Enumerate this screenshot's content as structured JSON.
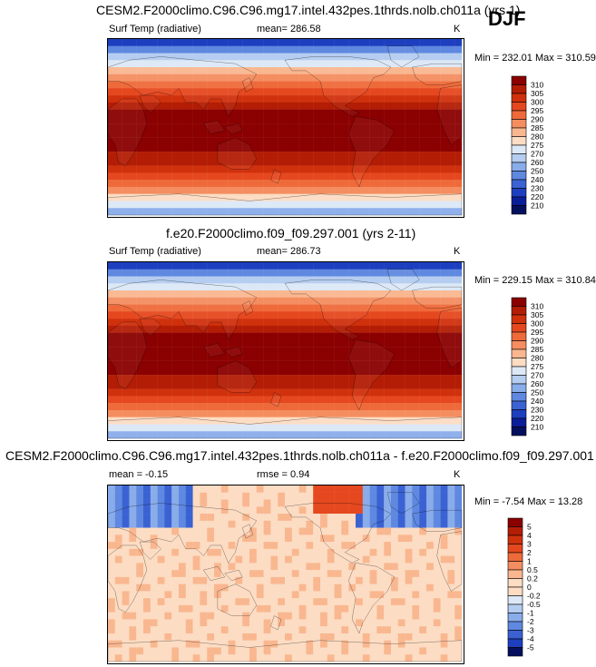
{
  "season": "DJF",
  "panels": [
    {
      "title": "CESM2.F2000climo.C96.C96.mg17.intel.432pes.1thrds.nolb.ch011a (yrs 1)",
      "variable": "Surf Temp (radiative)",
      "stat_label": "mean= 286.58",
      "units": "K",
      "minmax": "Min = 232.01 Max = 310.59",
      "kind": "abs"
    },
    {
      "title": "f.e20.F2000climo.f09_f09.297.001 (yrs 2-11)",
      "variable": "Surf Temp (radiative)",
      "stat_label": "mean= 286.73",
      "units": "K",
      "minmax": "Min = 229.15 Max = 310.84",
      "kind": "abs"
    },
    {
      "title": "CESM2.F2000climo.C96.C96.mg17.intel.432pes.1thrds.nolb.ch011a - f.e20.F2000climo.f09_f09.297.001",
      "variable": "mean = -0.15",
      "stat_label": "rmse = 0.94",
      "units": "K",
      "minmax": "Min = -7.54 Max = 13.28",
      "kind": "diff"
    }
  ],
  "chart_data": [
    {
      "type": "heatmap",
      "title": "CESM2.F2000climo.C96.C96.mg17.intel.432pes.1thrds.nolb.ch011a (yrs 1)",
      "variable": "Surf Temp (radiative)",
      "units": "K",
      "mean": 286.58,
      "min": 232.01,
      "max": 310.59,
      "colorbar_levels": [
        310,
        305,
        300,
        295,
        290,
        285,
        280,
        275,
        270,
        260,
        250,
        240,
        230,
        220,
        210
      ],
      "colors": [
        "#8b0000",
        "#b31d05",
        "#d0310d",
        "#e5481f",
        "#ef6a3a",
        "#f48e60",
        "#f9b790",
        "#fcdcc3",
        "#dde8f7",
        "#b4cdf0",
        "#89acea",
        "#5f88e0",
        "#3b62d3",
        "#1d3fbf",
        "#0b1e99",
        "#04105e"
      ]
    },
    {
      "type": "heatmap",
      "title": "f.e20.F2000climo.f09_f09.297.001 (yrs 2-11)",
      "variable": "Surf Temp (radiative)",
      "units": "K",
      "mean": 286.73,
      "min": 229.15,
      "max": 310.84,
      "colorbar_levels": [
        310,
        305,
        300,
        295,
        290,
        285,
        280,
        275,
        270,
        260,
        250,
        240,
        230,
        220,
        210
      ],
      "colors": [
        "#8b0000",
        "#b31d05",
        "#d0310d",
        "#e5481f",
        "#ef6a3a",
        "#f48e60",
        "#f9b790",
        "#fcdcc3",
        "#dde8f7",
        "#b4cdf0",
        "#89acea",
        "#5f88e0",
        "#3b62d3",
        "#1d3fbf",
        "#0b1e99",
        "#04105e"
      ]
    },
    {
      "type": "heatmap",
      "title": "CESM2.F2000climo.C96.C96.mg17.intel.432pes.1thrds.nolb.ch011a - f.e20.F2000climo.f09_f09.297.001",
      "units": "K",
      "mean": -0.15,
      "rmse": 0.94,
      "min": -7.54,
      "max": 13.28,
      "colorbar_levels": [
        "5",
        "4",
        "3",
        "2",
        "1",
        "0.5",
        "0.2",
        "0",
        "-0.2",
        "-0.5",
        "-1",
        "-2",
        "-3",
        "-4",
        "-5"
      ],
      "colors": [
        "#8b0000",
        "#b31d05",
        "#d0310d",
        "#e5481f",
        "#ef6a3a",
        "#f48e60",
        "#f9b790",
        "#fcdcc3",
        "#fcdcc3",
        "#dde8f7",
        "#b4cdf0",
        "#89acea",
        "#5f88e0",
        "#3b62d3",
        "#1d3fbf",
        "#04105e"
      ]
    }
  ]
}
